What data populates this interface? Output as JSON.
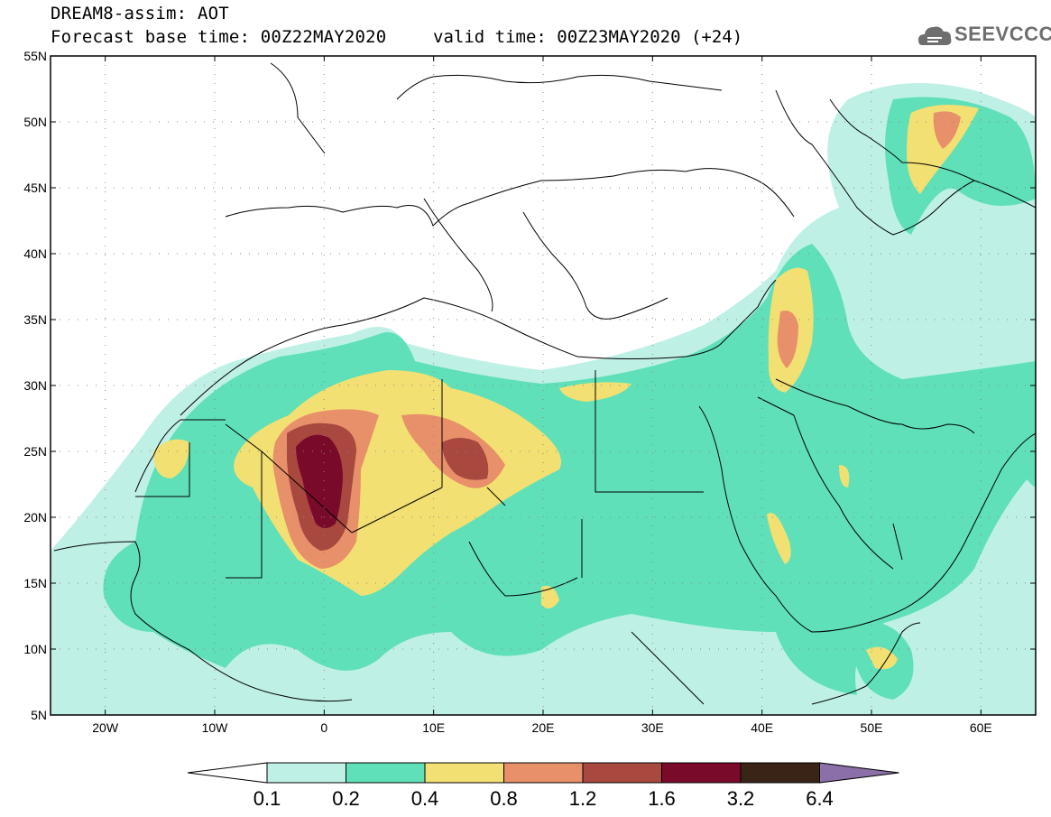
{
  "header": {
    "title_line1": "DREAM8-assim: AOT",
    "title_line2": "Forecast base time: 00Z22MAY2020",
    "valid_time": "valid time: 00Z23MAY2020 (+24)",
    "logo_text": "SEEVCCC"
  },
  "map": {
    "lat_labels": [
      "55N",
      "50N",
      "45N",
      "40N",
      "35N",
      "30N",
      "25N",
      "20N",
      "15N",
      "10N",
      "5N"
    ],
    "lon_labels": [
      "20W",
      "10W",
      "0",
      "10E",
      "20E",
      "30E",
      "40E",
      "50E",
      "60E"
    ],
    "lon_range": [
      -25,
      65
    ],
    "lat_range": [
      5,
      55
    ]
  },
  "colorbar": {
    "levels": [
      "0.1",
      "0.2",
      "0.4",
      "0.8",
      "1.2",
      "1.6",
      "3.2",
      "6.4"
    ],
    "colors": [
      "#ffffff",
      "#bff0e6",
      "#5fe0b8",
      "#f3e072",
      "#e8906a",
      "#a8483e",
      "#7a0a2a",
      "#3a2418",
      "#8b6fa8"
    ]
  }
}
